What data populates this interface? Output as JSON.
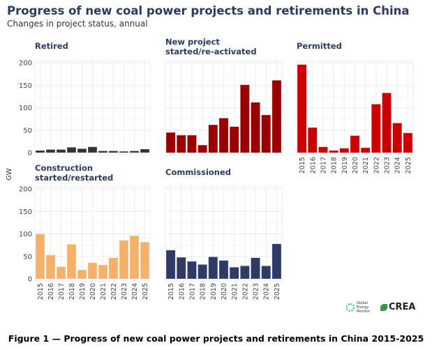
{
  "title": "Progress of new coal power projects and retirements in China",
  "subtitle": "Changes in project status, annual",
  "caption": "Figure 1 — Progress of new coal power projects and retirements in China 2015-2025",
  "logos": [
    "Global Energy Monitor",
    "CREA"
  ],
  "chart_data": [
    {
      "type": "bar",
      "title": "Retired",
      "ylabel": "GW",
      "ylim": [
        0,
        200
      ],
      "yticks": [
        0,
        50,
        100,
        150,
        200
      ],
      "color": "#333333",
      "categories": [
        "2015",
        "2016",
        "2017",
        "2018",
        "2019",
        "2020",
        "2021",
        "2022",
        "2023",
        "2024",
        "2025"
      ],
      "values": [
        5,
        7,
        7,
        12,
        9,
        13,
        4,
        4,
        3,
        4,
        8
      ]
    },
    {
      "type": "bar",
      "title": "New project started/re-activated",
      "title_lines": [
        "New project",
        "started/re-activated"
      ],
      "ylim": [
        0,
        200
      ],
      "color": "#990000",
      "categories": [
        "2015",
        "2016",
        "2017",
        "2018",
        "2019",
        "2020",
        "2021",
        "2022",
        "2023",
        "2024",
        "2025"
      ],
      "values": [
        45,
        39,
        39,
        17,
        62,
        77,
        58,
        151,
        112,
        84,
        161
      ]
    },
    {
      "type": "bar",
      "title": "Permitted",
      "ylim": [
        0,
        200
      ],
      "color": "#cc0000",
      "categories": [
        "2015",
        "2016",
        "2017",
        "2018",
        "2019",
        "2020",
        "2021",
        "2022",
        "2023",
        "2024",
        "2025"
      ],
      "values": [
        196,
        56,
        13,
        5,
        10,
        38,
        11,
        108,
        133,
        66,
        44
      ]
    },
    {
      "type": "bar",
      "title": "Construction started/restarted",
      "title_lines": [
        "Construction",
        "started/restarted"
      ],
      "ylabel": "GW",
      "ylim": [
        0,
        200
      ],
      "yticks": [
        0,
        50,
        100,
        150,
        200
      ],
      "color": "#f5b06a",
      "categories": [
        "2015",
        "2016",
        "2017",
        "2018",
        "2019",
        "2020",
        "2021",
        "2022",
        "2023",
        "2024",
        "2025"
      ],
      "values": [
        100,
        53,
        27,
        77,
        20,
        36,
        31,
        47,
        86,
        96,
        82
      ]
    },
    {
      "type": "bar",
      "title": "Commissioned",
      "ylim": [
        0,
        200
      ],
      "color": "#2f3a66",
      "categories": [
        "2015",
        "2016",
        "2017",
        "2018",
        "2019",
        "2020",
        "2021",
        "2022",
        "2023",
        "2024",
        "2025"
      ],
      "values": [
        64,
        48,
        39,
        32,
        49,
        41,
        26,
        29,
        47,
        29,
        78
      ]
    }
  ]
}
